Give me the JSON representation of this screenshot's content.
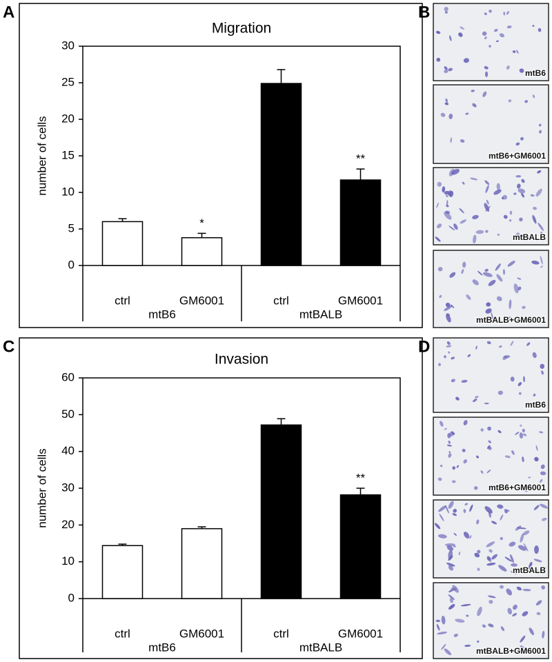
{
  "chart_data": [
    {
      "type": "bar",
      "panel_label": "A",
      "title": "Migration",
      "y_label": "number of cells",
      "categories": [
        "ctrl",
        "GM6001",
        "ctrl",
        "GM6001"
      ],
      "group_labels": [
        "mtB6",
        "mtBALB"
      ],
      "values": [
        6.0,
        3.8,
        24.9,
        11.7
      ],
      "errors": [
        0.4,
        0.6,
        1.9,
        1.5
      ],
      "colors": [
        "#ffffff",
        "#ffffff",
        "#000000",
        "#000000"
      ],
      "annotations": [
        null,
        "*",
        null,
        "**"
      ],
      "ylim": [
        0,
        30
      ],
      "yticks": [
        0,
        5,
        10,
        15,
        20,
        25,
        30
      ]
    },
    {
      "type": "bar",
      "panel_label": "C",
      "title": "Invasion",
      "y_label": "number of cells",
      "categories": [
        "ctrl",
        "GM6001",
        "ctrl",
        "GM6001"
      ],
      "group_labels": [
        "mtB6",
        "mtBALB"
      ],
      "values": [
        14.4,
        19.0,
        47.2,
        28.2
      ],
      "errors": [
        0.4,
        0.5,
        1.7,
        1.8
      ],
      "colors": [
        "#ffffff",
        "#ffffff",
        "#000000",
        "#000000"
      ],
      "annotations": [
        null,
        null,
        null,
        "**"
      ],
      "ylim": [
        0,
        60
      ],
      "yticks": [
        0,
        10,
        20,
        30,
        40,
        50,
        60
      ]
    }
  ],
  "image_panels": [
    {
      "panel_label": "B",
      "captions": [
        "mtB6",
        "mtB6+GM6001",
        "mtBALB",
        "mtBALB+GM6001"
      ]
    },
    {
      "panel_label": "D",
      "captions": [
        "mtB6",
        "mtB6+GM6001",
        "mtBALB",
        "mtBALB+GM6001"
      ]
    }
  ]
}
